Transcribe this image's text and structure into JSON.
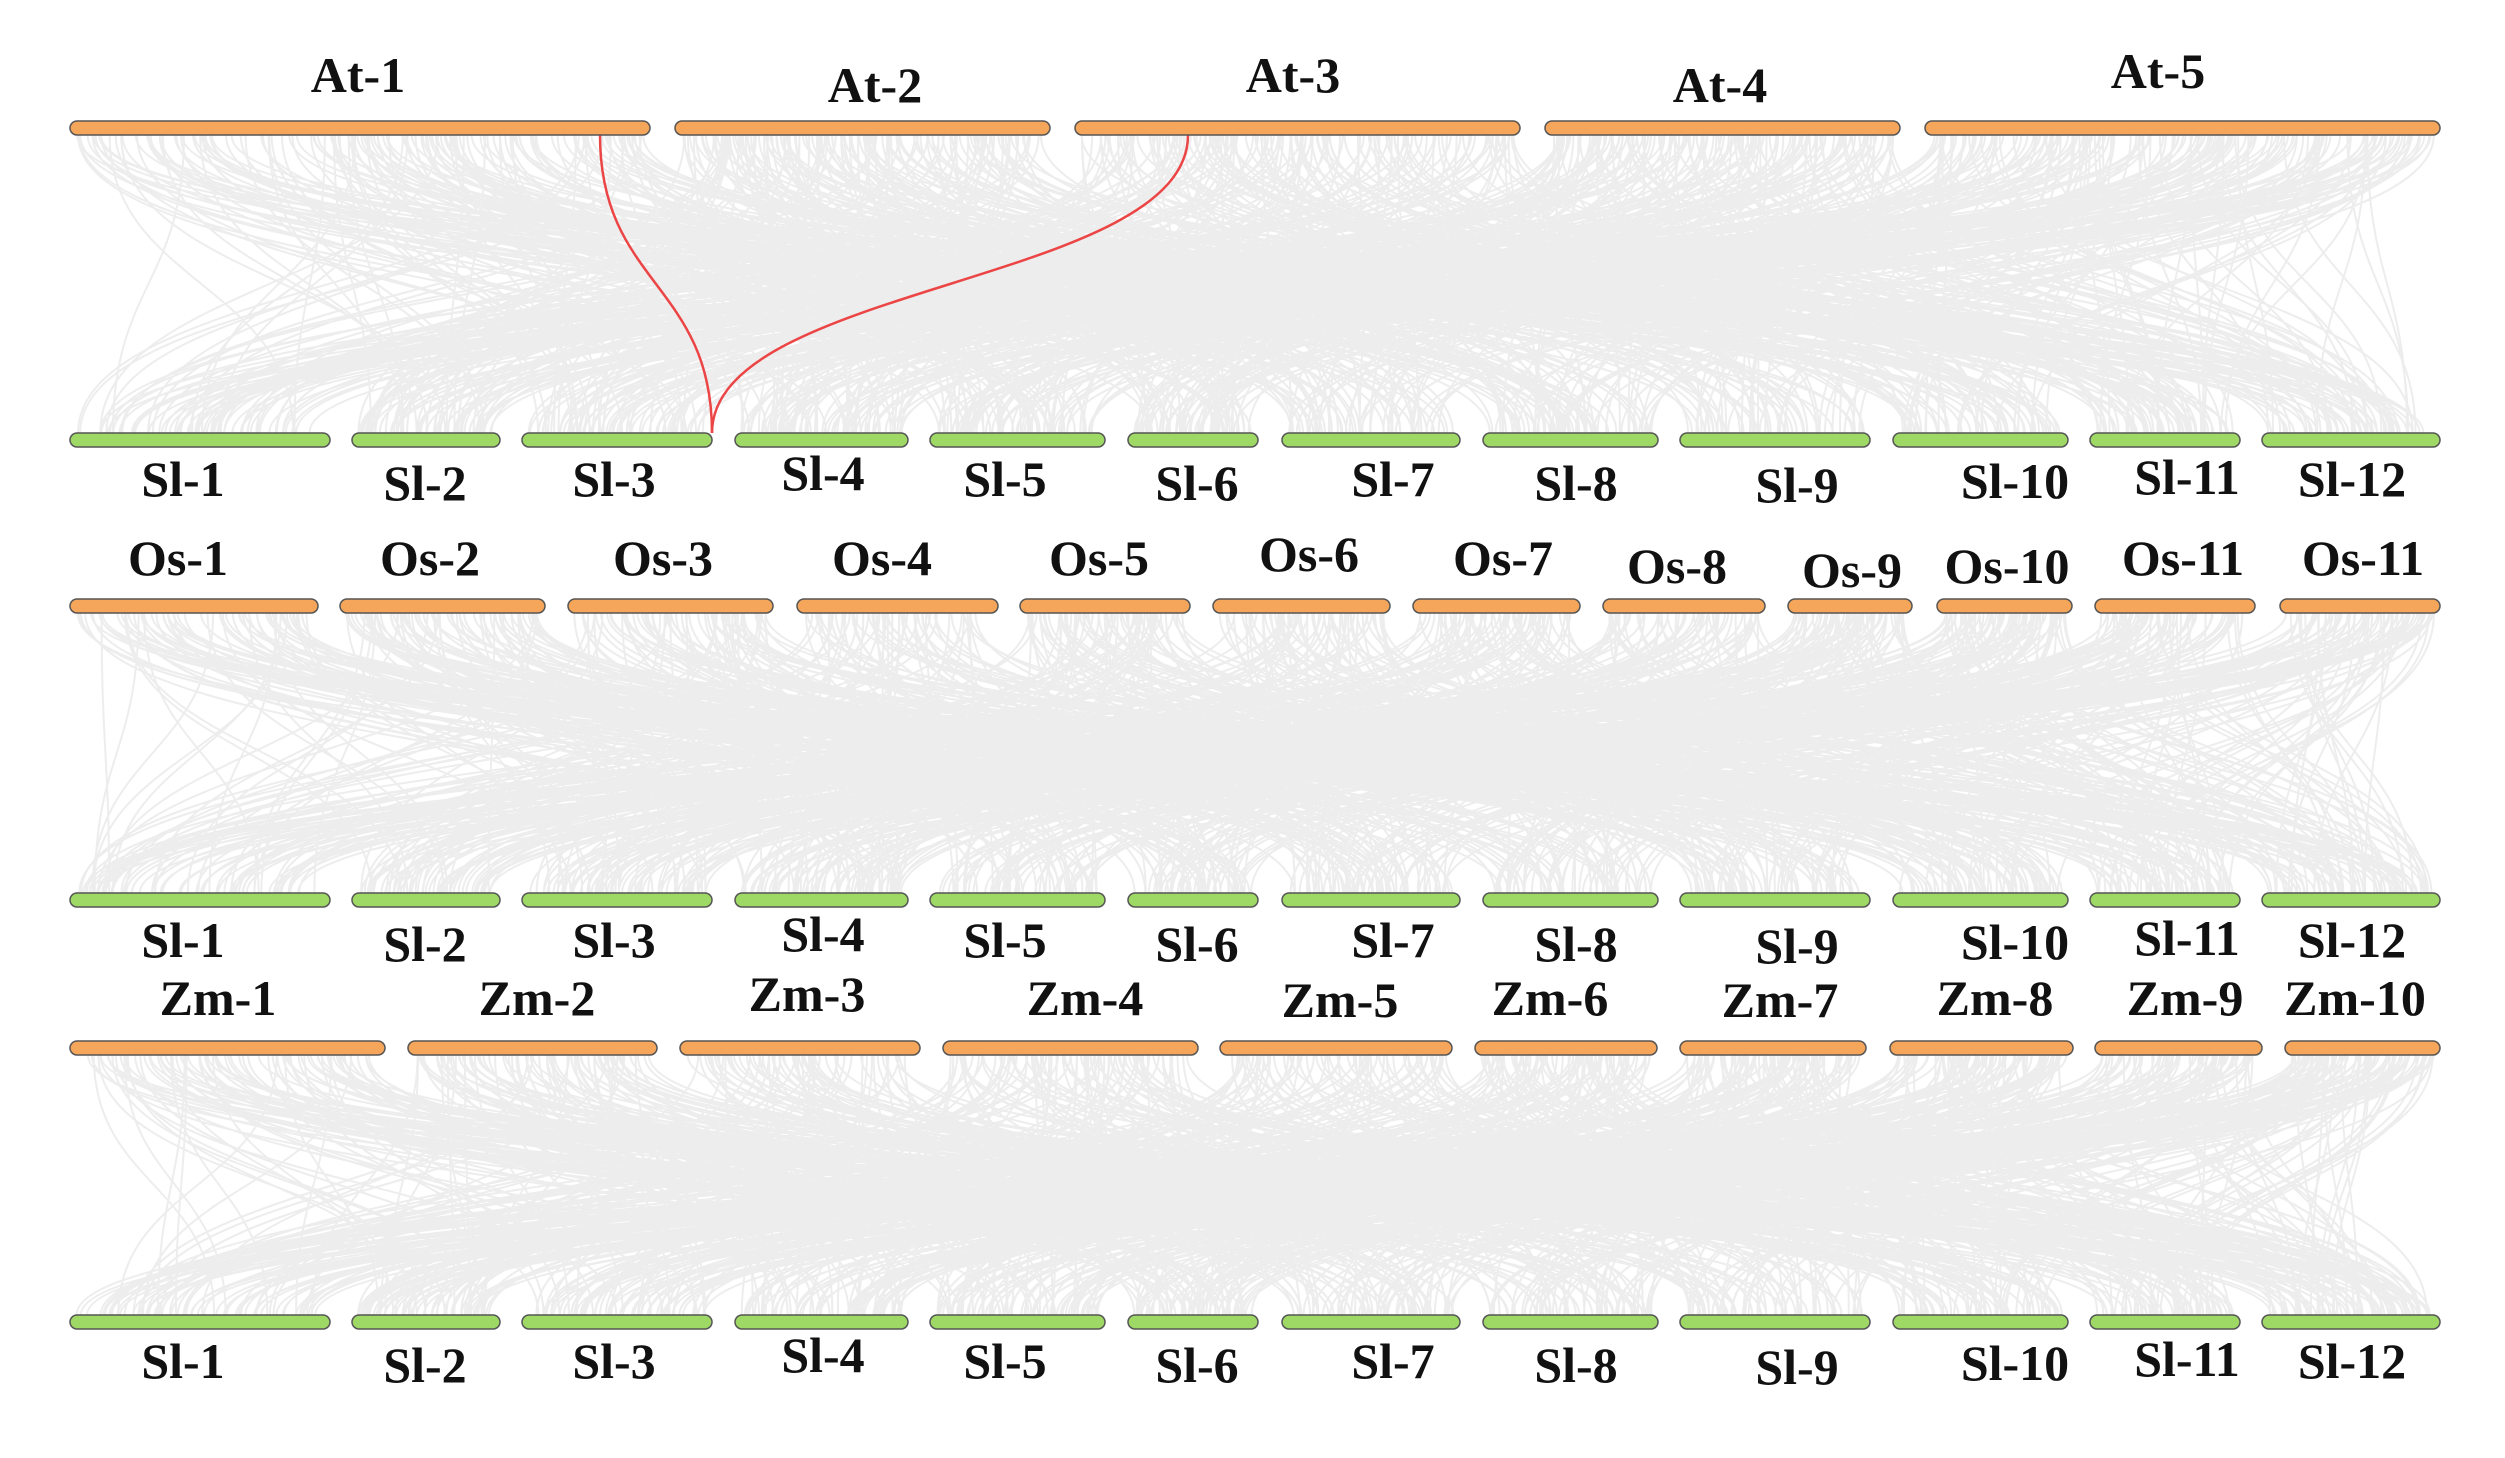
{
  "colors": {
    "background": "#ffffff",
    "reference_chromosome": "#f6a65b",
    "tomato_chromosome": "#9fd965",
    "outline": "#555555",
    "background_link": "#dedede",
    "highlight_link": "#ec4545"
  },
  "panels": [
    {
      "species": "At",
      "top_labels": [
        "At-1",
        "At-2",
        "At-3",
        "At-4",
        "At-5"
      ],
      "bottom_labels": [
        "Sl-1",
        "Sl-2",
        "Sl-3",
        "Sl-4",
        "Sl-5",
        "Sl-6",
        "Sl-7",
        "Sl-8",
        "Sl-9",
        "Sl-10",
        "Sl-11",
        "Sl-12"
      ]
    },
    {
      "species": "Os",
      "top_labels": [
        "Os-1",
        "Os-2",
        "Os-3",
        "Os-4",
        "Os-5",
        "Os-6",
        "Os-7",
        "Os-8",
        "Os-9",
        "Os-10",
        "Os-11",
        "Os-11"
      ],
      "bottom_labels": [
        "Sl-1",
        "Sl-2",
        "Sl-3",
        "Sl-4",
        "Sl-5",
        "Sl-6",
        "Sl-7",
        "Sl-8",
        "Sl-9",
        "Sl-10",
        "Sl-11",
        "Sl-12"
      ]
    },
    {
      "species": "Zm",
      "top_labels": [
        "Zm-1",
        "Zm-2",
        "Zm-3",
        "Zm-4",
        "Zm-5",
        "Zm-6",
        "Zm-7",
        "Zm-8",
        "Zm-9",
        "Zm-10"
      ],
      "bottom_labels": [
        "Sl-1",
        "Sl-2",
        "Sl-3",
        "Sl-4",
        "Sl-5",
        "Sl-6",
        "Sl-7",
        "Sl-8",
        "Sl-9",
        "Sl-10",
        "Sl-11",
        "Sl-12"
      ]
    }
  ],
  "highlighted_links": [
    {
      "from": "At-1",
      "to": "Sl-3"
    },
    {
      "from": "At-3",
      "to": "Sl-3"
    }
  ]
}
